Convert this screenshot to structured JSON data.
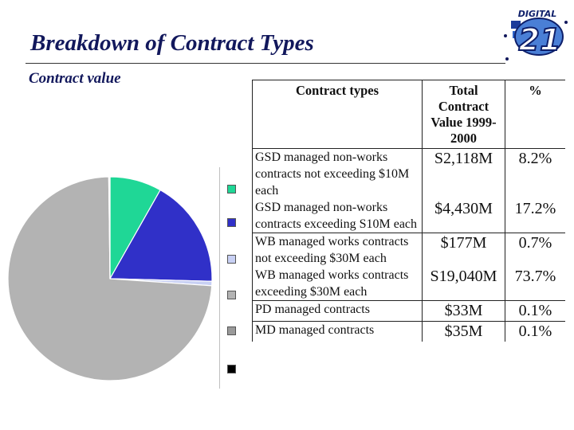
{
  "header": {
    "title": "Breakdown of Contract Types",
    "subtitle": "Contract value"
  },
  "logo": {
    "top_text": "DIGITAL",
    "number": "21",
    "icon": "digital-21-logo"
  },
  "colors": {
    "title": "#12185c",
    "slice_gsd_small": "#1fd796",
    "slice_gsd_large": "#3030c8",
    "slice_wb_small": "#c8d0f4",
    "slice_wb_large": "#b3b3b3",
    "slice_pd": "#9a9a9a",
    "slice_md": "#000000"
  },
  "table": {
    "headers": [
      "Contract types",
      "Total Contract Value 1999-2000",
      "%"
    ],
    "rows": [
      {
        "type": "GSD managed non-works contracts not exceeding $10M each",
        "value": "S2,118M",
        "percent": "8.2%"
      },
      {
        "type": "GSD managed non-works contracts exceeding S10M each",
        "value": "$4,430M",
        "percent": "17.2%"
      },
      {
        "type": "WB managed works contracts not exceeding $30M each",
        "value": "$177M",
        "percent": "0.7%"
      },
      {
        "type": "WB managed works contracts exceeding $30M each",
        "value": "S19,040M",
        "percent": "73.7%"
      },
      {
        "type": "PD managed contracts",
        "value": "$33M",
        "percent": "0.1%"
      },
      {
        "type": "MD managed contracts",
        "value": "$35M",
        "percent": "0.1%"
      }
    ]
  },
  "chart_data": {
    "type": "pie",
    "title": "Contract value",
    "categories": [
      "GSD managed non-works contracts not exceeding $10M each",
      "GSD managed non-works contracts exceeding S10M each",
      "WB managed works contracts not exceeding $30M each",
      "WB managed works contracts exceeding $30M each",
      "PD managed contracts",
      "MD managed contracts"
    ],
    "values": [
      8.2,
      17.2,
      0.7,
      73.7,
      0.1,
      0.1
    ],
    "amounts_million": [
      2118,
      4430,
      177,
      19040,
      33,
      35
    ],
    "legend": "right, color swatches aligned with table rows"
  }
}
